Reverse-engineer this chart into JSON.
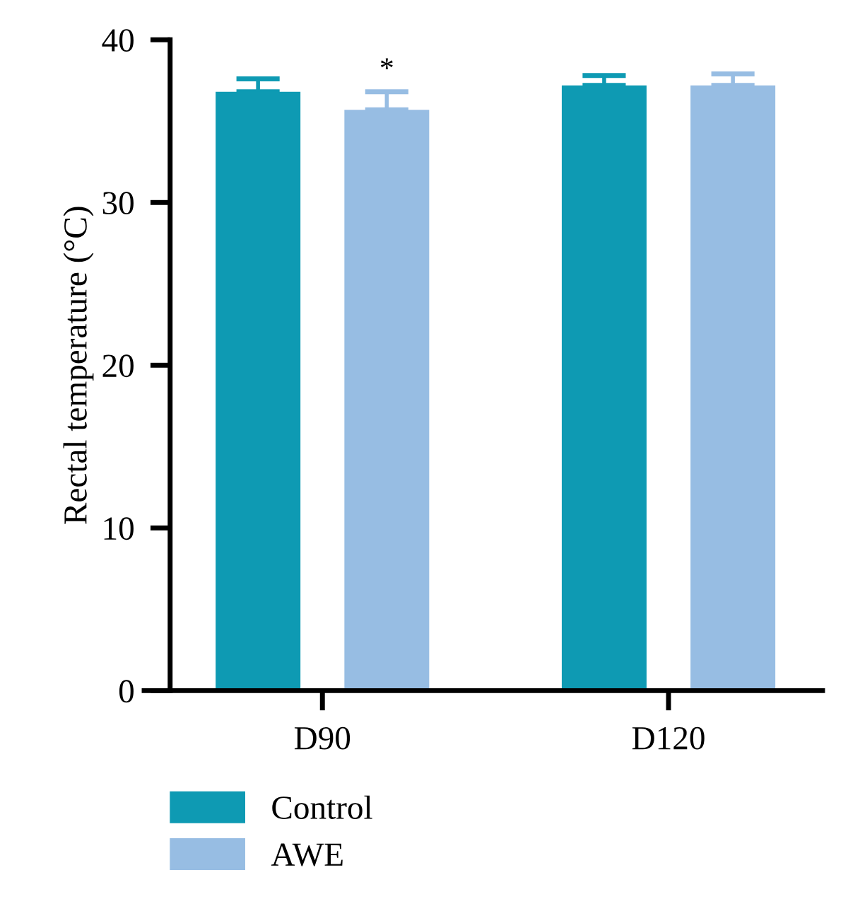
{
  "chart_data": {
    "type": "bar",
    "ylabel": "Rectal temperature (°C)",
    "categories": [
      "D90",
      "D120"
    ],
    "series": [
      {
        "name": "Control",
        "color": "#0e9ab3",
        "values": [
          36.8,
          37.2
        ],
        "errors": [
          [
            36.8,
            37.6
          ],
          [
            37.2,
            37.8
          ]
        ]
      },
      {
        "name": "AWE",
        "color": "#97bde3",
        "values": [
          35.7,
          37.2
        ],
        "errors": [
          [
            35.7,
            36.8
          ],
          [
            37.2,
            37.9
          ]
        ]
      }
    ],
    "ylim": [
      0,
      40
    ],
    "yticks": [
      0,
      10,
      20,
      30,
      40
    ],
    "grid": false,
    "legend": "bottom left",
    "annotations": [
      "*"
    ]
  }
}
